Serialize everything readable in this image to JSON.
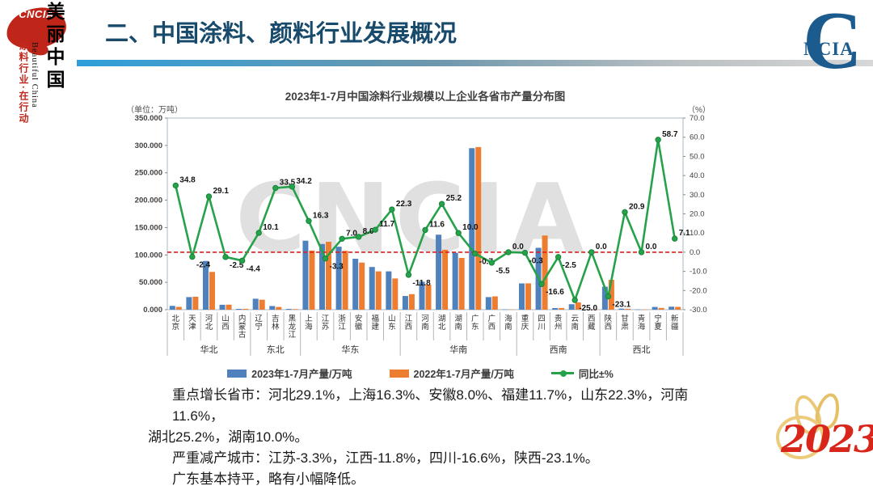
{
  "sidebar": {
    "logo_text": "CNCIA",
    "slogan_vertical": "涂料行业·在行动",
    "brand_cn": "美丽中国",
    "brand_en": "Beautiful China"
  },
  "header": {
    "title": "二、中国涂料、颜料行业发展概况",
    "corner_logo_c": "C",
    "corner_logo_text": "NCIA"
  },
  "chart_data": {
    "type": "bar+line",
    "title": "2023年1-7月中国涂料行业规模以上企业各省市产量分布图",
    "unit_left": "（单位：万吨）",
    "unit_right": "（%）",
    "watermark": "CNCIA",
    "categories": [
      "北京",
      "天津",
      "河北",
      "山西",
      "内蒙古",
      "辽宁",
      "吉林",
      "黑龙江",
      "上海",
      "江苏",
      "浙江",
      "安徽",
      "福建",
      "山东",
      "江西",
      "河南",
      "湖北",
      "湖南",
      "广东",
      "广西",
      "海南",
      "重庆",
      "四川",
      "贵州",
      "云南",
      "西藏",
      "陕西",
      "甘肃",
      "青海",
      "宁夏",
      "新疆"
    ],
    "groups": [
      {
        "label": "华北",
        "span": 5
      },
      {
        "label": "东北",
        "span": 3
      },
      {
        "label": "华东",
        "span": 6
      },
      {
        "label": "华南",
        "span": 7
      },
      {
        "label": "西南",
        "span": 5
      },
      {
        "label": "西北",
        "span": 5
      }
    ],
    "series": [
      {
        "name": "2023年1-7月产量/万吨",
        "type": "bar",
        "color": "#4f81bd",
        "values": [
          7.0,
          23.0,
          89.0,
          9.0,
          1.5,
          20.0,
          6.7,
          1.5,
          126.0,
          120.0,
          115.0,
          93.0,
          78.0,
          70.0,
          25.0,
          51.0,
          137.0,
          104.0,
          295.0,
          23.0,
          0.6,
          48.0,
          113.0,
          3.0,
          10.0,
          0.4,
          42.0,
          2.0,
          0.4,
          5.0,
          5.5
        ]
      },
      {
        "name": "2022年1-7月产量/万吨",
        "type": "bar",
        "color": "#ed7d31",
        "values": [
          5.2,
          23.6,
          69.0,
          9.2,
          1.6,
          18.2,
          5.0,
          1.1,
          108.0,
          124.0,
          107.5,
          86.0,
          70.0,
          57.0,
          28.4,
          45.7,
          109.4,
          94.5,
          297.0,
          24.3,
          0.6,
          48.1,
          135.5,
          3.1,
          13.3,
          0.4,
          54.6,
          1.7,
          0.4,
          3.2,
          5.1
        ]
      },
      {
        "name": "同比±%",
        "type": "line",
        "color": "#25a24a",
        "axis": "right",
        "values": [
          34.8,
          -2.4,
          29.1,
          -2.5,
          -4.4,
          10.1,
          33.5,
          34.2,
          16.3,
          -3.3,
          7.0,
          8.0,
          11.7,
          22.3,
          -11.8,
          11.6,
          25.2,
          10.0,
          -0.7,
          -5.5,
          0.0,
          -0.3,
          -16.6,
          -2.5,
          -25.0,
          0.0,
          -23.1,
          20.9,
          0.0,
          58.7,
          7.1
        ]
      }
    ],
    "left_axis": {
      "min": 0,
      "max": 350,
      "step": 50,
      "tick_format_decimals": 3
    },
    "right_axis": {
      "min": -30,
      "max": 70,
      "step": 10,
      "tick_format_decimals": 1
    },
    "zero_line_color": "#e01f1f",
    "legend_position": "bottom",
    "grid": false
  },
  "notes": {
    "line1": "重点增长省市：河北29.1%，上海16.3%、安徽8.0%、福建11.7%，山东22.3%，河南11.6%，",
    "line2": "湖北25.2%，湖南10.0%。",
    "line3": "严重减产城市：江苏-3.3%，江西-11.8%，四川-16.6%，陕西-23.1%。",
    "line4": "广东基本持平，略有小幅降低。"
  },
  "footer": {
    "year_graphic": "2023"
  }
}
